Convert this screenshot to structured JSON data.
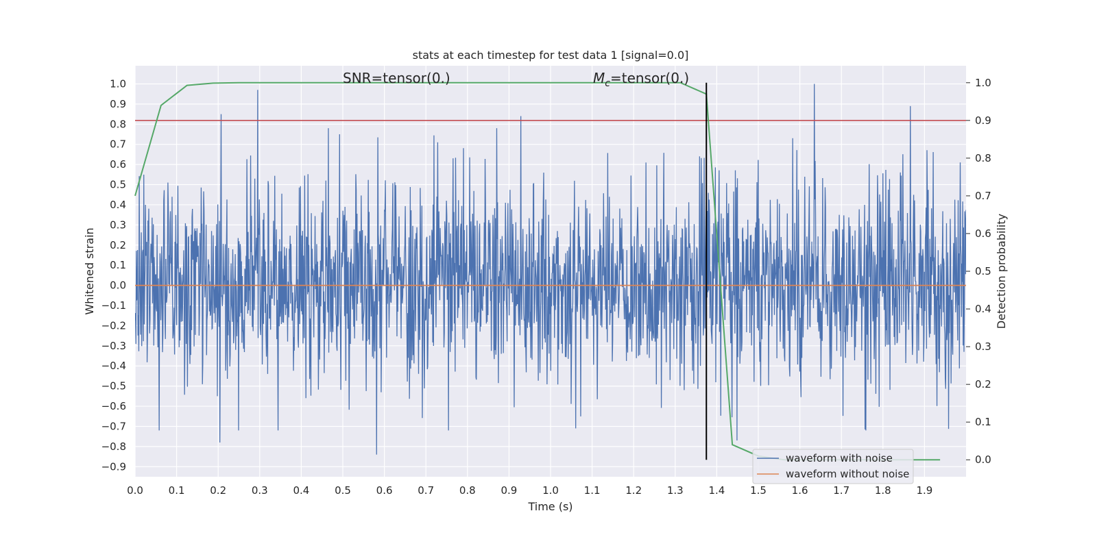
{
  "chart_data": {
    "type": "line",
    "title": "stats at each timestep for test data 1 [signal=0.0]",
    "xlabel": "Time (s)",
    "ylabel": "Whitened strain",
    "y2label": "Detection probability",
    "xlim": [
      0.0,
      2.0
    ],
    "ylim": [
      -0.95,
      1.09
    ],
    "y2lim": [
      -0.045,
      1.045
    ],
    "x_ticks": [
      "0.0",
      "0.1",
      "0.2",
      "0.3",
      "0.4",
      "0.5",
      "0.6",
      "0.7",
      "0.8",
      "0.9",
      "1.0",
      "1.1",
      "1.2",
      "1.3",
      "1.4",
      "1.5",
      "1.6",
      "1.7",
      "1.8",
      "1.9"
    ],
    "y_ticks": [
      "1.0",
      "0.9",
      "0.8",
      "0.7",
      "0.6",
      "0.5",
      "0.4",
      "0.3",
      "0.2",
      "0.1",
      "0.0",
      "−0.1",
      "−0.2",
      "−0.3",
      "−0.4",
      "−0.5",
      "−0.6",
      "−0.7",
      "−0.8",
      "−0.9"
    ],
    "y2_ticks": [
      "1.0",
      "0.9",
      "0.8",
      "0.7",
      "0.6",
      "0.5",
      "0.4",
      "0.3",
      "0.2",
      "0.1",
      "0.0"
    ],
    "grid": true,
    "legend_placement": "bottom-right",
    "annotations": {
      "snr_text": "SNR=tensor(0.)",
      "mc_symbol": "M",
      "mc_subscript": "c",
      "mc_text": "=tensor(0.)",
      "snr_x": 0.5,
      "mc_x": 1.1
    },
    "threshold": {
      "axis": "y2",
      "value": 0.9,
      "color": "#c44e52"
    },
    "marker_line": {
      "x": 1.375,
      "y2_from": 0.0,
      "y2_to": 1.0,
      "color": "#000000"
    },
    "noise_series": {
      "name": "waveform with noise",
      "color": "#4c72b0",
      "samples": 2000,
      "amplitude_std": 0.25,
      "peaks": [
        {
          "x": 0.295,
          "y": 0.97
        },
        {
          "x": 0.207,
          "y": 0.85
        },
        {
          "x": 0.928,
          "y": 0.84
        },
        {
          "x": 1.635,
          "y": 1.0
        },
        {
          "x": 1.866,
          "y": 0.89
        },
        {
          "x": 0.492,
          "y": 0.75
        },
        {
          "x": 0.581,
          "y": -0.84
        },
        {
          "x": 0.204,
          "y": -0.78
        },
        {
          "x": 0.058,
          "y": -0.72
        },
        {
          "x": 1.061,
          "y": -0.71
        },
        {
          "x": 1.449,
          "y": -0.77
        },
        {
          "x": 1.986,
          "y": 0.61
        }
      ]
    },
    "clean_series": {
      "name": "waveform without noise",
      "color": "#dd8452",
      "x": [
        0.0,
        2.0
      ],
      "y": [
        0.0,
        0.0
      ]
    },
    "probability_series": {
      "color": "#55a868",
      "x": [
        0.0,
        0.0625,
        0.125,
        0.1875,
        0.25,
        0.3125,
        0.375,
        0.4375,
        0.5,
        0.5625,
        0.625,
        0.6875,
        0.75,
        0.8125,
        0.875,
        0.9375,
        1.0,
        1.0625,
        1.125,
        1.1875,
        1.25,
        1.3125,
        1.375,
        1.4375,
        1.5,
        1.5625,
        1.625,
        1.6875,
        1.75,
        1.8125,
        1.875,
        1.9375
      ],
      "y": [
        0.7,
        0.94,
        0.993,
        0.999,
        1.0,
        1.0,
        1.0,
        1.0,
        1.0,
        1.0,
        1.0,
        1.0,
        1.0,
        1.0,
        1.0,
        1.0,
        1.0,
        1.0,
        1.0,
        1.0,
        1.0,
        1.0,
        0.97,
        0.04,
        0.01,
        0.0,
        0.0,
        0.0,
        0.0,
        0.0,
        0.0,
        0.0
      ]
    }
  }
}
